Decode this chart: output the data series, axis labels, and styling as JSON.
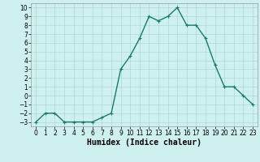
{
  "x": [
    0,
    1,
    2,
    3,
    4,
    5,
    6,
    7,
    8,
    9,
    10,
    11,
    12,
    13,
    14,
    15,
    16,
    17,
    18,
    19,
    20,
    21,
    22,
    23
  ],
  "y": [
    -3,
    -2,
    -2,
    -3,
    -3,
    -3,
    -3,
    -2.5,
    -2,
    3,
    4.5,
    6.5,
    9,
    8.5,
    9,
    10,
    8,
    8,
    6.5,
    3.5,
    1,
    1,
    0,
    -1
  ],
  "line_color": "#1a7a6e",
  "marker": "+",
  "marker_size": 3,
  "marker_linewidth": 0.8,
  "background_color": "#cef0ee",
  "grid_color": "#b0d8d5",
  "xlabel": "Humidex (Indice chaleur)",
  "xlabel_fontsize": 7,
  "xlim": [
    -0.5,
    23.5
  ],
  "ylim": [
    -3.5,
    10.5
  ],
  "yticks": [
    -3,
    -2,
    -1,
    0,
    1,
    2,
    3,
    4,
    5,
    6,
    7,
    8,
    9,
    10
  ],
  "xticks": [
    0,
    1,
    2,
    3,
    4,
    5,
    6,
    7,
    8,
    9,
    10,
    11,
    12,
    13,
    14,
    15,
    16,
    17,
    18,
    19,
    20,
    21,
    22,
    23
  ],
  "tick_fontsize": 5.5,
  "linewidth": 1.0
}
